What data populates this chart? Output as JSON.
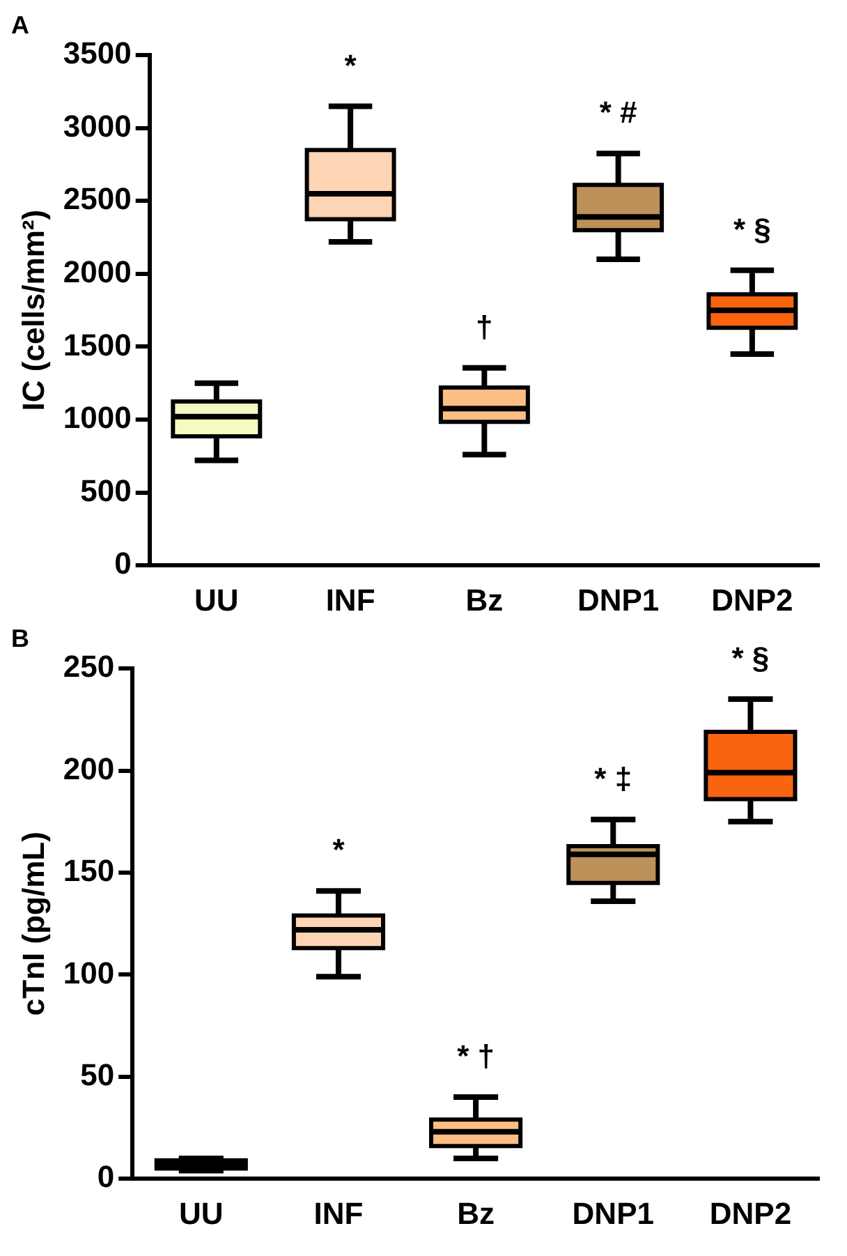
{
  "chart_data": [
    {
      "type": "box",
      "title": "A",
      "ylabel": "IC (cells/mm²)",
      "categories": [
        "UU",
        "INF",
        "Bz",
        "DNP1",
        "DNP2"
      ],
      "boxes": [
        {
          "low": 720,
          "q1": 885,
          "median": 1020,
          "q3": 1125,
          "high": 1250
        },
        {
          "low": 2220,
          "q1": 2375,
          "median": 2550,
          "q3": 2850,
          "high": 3150
        },
        {
          "low": 760,
          "q1": 985,
          "median": 1075,
          "q3": 1220,
          "high": 1355
        },
        {
          "low": 2100,
          "q1": 2300,
          "median": 2390,
          "q3": 2610,
          "high": 2825
        },
        {
          "low": 1450,
          "q1": 1630,
          "median": 1750,
          "q3": 1860,
          "high": 2025
        }
      ],
      "colors": [
        "#f5fbc0",
        "#fdd5b5",
        "#fbbf86",
        "#bd915a",
        "#f8640f"
      ],
      "ylim": [
        0,
        3500
      ],
      "yticks": [
        0,
        500,
        1000,
        1500,
        2000,
        2500,
        3000,
        3500
      ],
      "annotations": [
        "*",
        "†",
        "* #",
        "* §"
      ]
    },
    {
      "type": "box",
      "title": "B",
      "ylabel": "cTnI (pg/mL)",
      "categories": [
        "UU",
        "INF",
        "Bz",
        "DNP1",
        "DNP2"
      ],
      "boxes": [
        {
          "low": 4,
          "q1": 5,
          "median": 7,
          "q3": 9,
          "high": 10
        },
        {
          "low": 99,
          "q1": 113,
          "median": 122,
          "q3": 129,
          "high": 141
        },
        {
          "low": 10,
          "q1": 16,
          "median": 23,
          "q3": 29,
          "high": 40
        },
        {
          "low": 136,
          "q1": 145,
          "median": 159,
          "q3": 163,
          "high": 176
        },
        {
          "low": 175,
          "q1": 186,
          "median": 199,
          "q3": 219,
          "high": 235
        }
      ],
      "colors": [
        "#f5fbc0",
        "#fdd5b5",
        "#fbbf86",
        "#bd915a",
        "#f8640f"
      ],
      "ylim": [
        0,
        250
      ],
      "yticks": [
        0,
        50,
        100,
        150,
        200,
        250
      ],
      "annotations": [
        "*",
        "* †",
        "* ‡",
        "* §"
      ]
    }
  ]
}
